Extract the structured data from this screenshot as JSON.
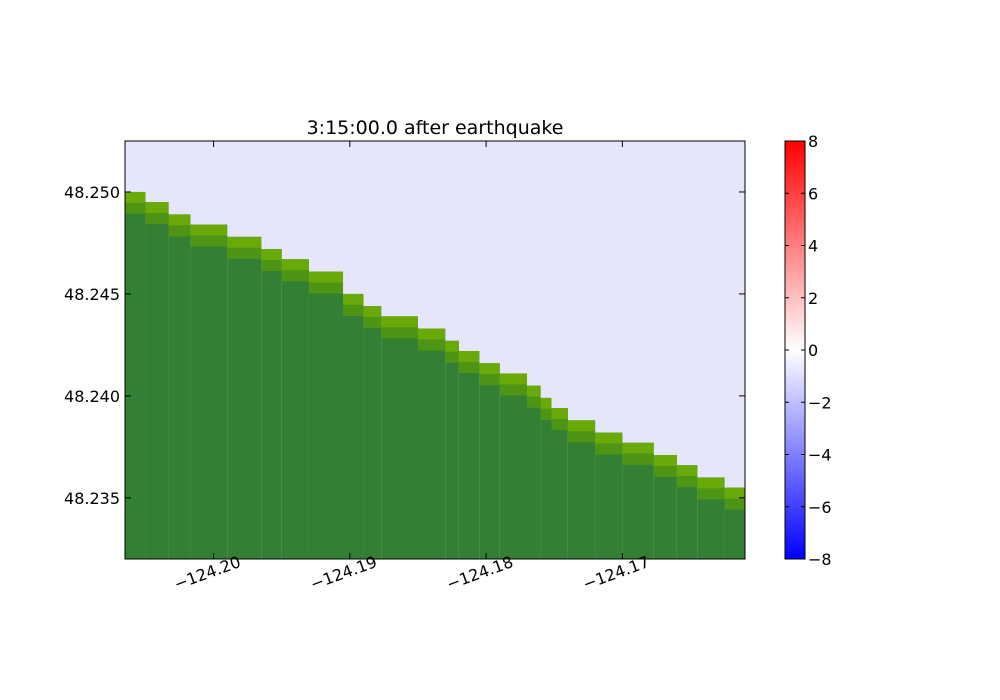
{
  "chart_data": {
    "type": "heatmap",
    "title": "3:15:00.0 after earthquake",
    "xlabel": "",
    "ylabel": "",
    "xlim": [
      -124.2065,
      -124.161
    ],
    "ylim": [
      48.232,
      48.2525
    ],
    "x_ticks": [
      {
        "value": -124.2,
        "label": "−124.20"
      },
      {
        "value": -124.19,
        "label": "−124.19"
      },
      {
        "value": -124.18,
        "label": "−124.18"
      },
      {
        "value": -124.17,
        "label": "−124.17"
      }
    ],
    "y_ticks": [
      {
        "value": 48.25,
        "label": "48.250"
      },
      {
        "value": 48.245,
        "label": "48.245"
      },
      {
        "value": 48.24,
        "label": "48.240"
      },
      {
        "value": 48.235,
        "label": "48.235"
      }
    ],
    "colors": {
      "water": "#e6e6fa",
      "land": "#337f33",
      "shore": "#6aaa08",
      "shore_edge": "#4e9516"
    },
    "shoreline": {
      "description_of_value": "latitude of the water/land boundary at longitude x",
      "x": [
        -124.2065,
        -124.205,
        -124.2033,
        -124.2017,
        -124.199,
        -124.1965,
        -124.195,
        -124.193,
        -124.1905,
        -124.189,
        -124.1877,
        -124.185,
        -124.183,
        -124.182,
        -124.1805,
        -124.179,
        -124.177,
        -124.176,
        -124.1752,
        -124.174,
        -124.172,
        -124.17,
        -124.1677,
        -124.166,
        -124.1645,
        -124.1625,
        -124.161
      ],
      "y": [
        48.25,
        48.2495,
        48.2489,
        48.2484,
        48.2478,
        48.2472,
        48.2467,
        48.2461,
        48.245,
        48.2444,
        48.2439,
        48.2433,
        48.2427,
        48.2422,
        48.2416,
        48.2411,
        48.2405,
        48.2399,
        48.2394,
        48.2388,
        48.2382,
        48.2377,
        48.2371,
        48.2366,
        48.236,
        48.2355,
        48.2344
      ]
    },
    "colorbar": {
      "range": [
        -8,
        8
      ],
      "ticks": [
        {
          "value": 8,
          "label": "8"
        },
        {
          "value": 6,
          "label": "6"
        },
        {
          "value": 4,
          "label": "4"
        },
        {
          "value": 2,
          "label": "2"
        },
        {
          "value": 0,
          "label": "0"
        },
        {
          "value": -2,
          "label": "−2"
        },
        {
          "value": -4,
          "label": "−4"
        },
        {
          "value": -6,
          "label": "−6"
        },
        {
          "value": -8,
          "label": "−8"
        }
      ],
      "colormap": [
        "#0000ff",
        "#ffffff",
        "#ff0000"
      ]
    },
    "grid": false,
    "legend": "none"
  }
}
